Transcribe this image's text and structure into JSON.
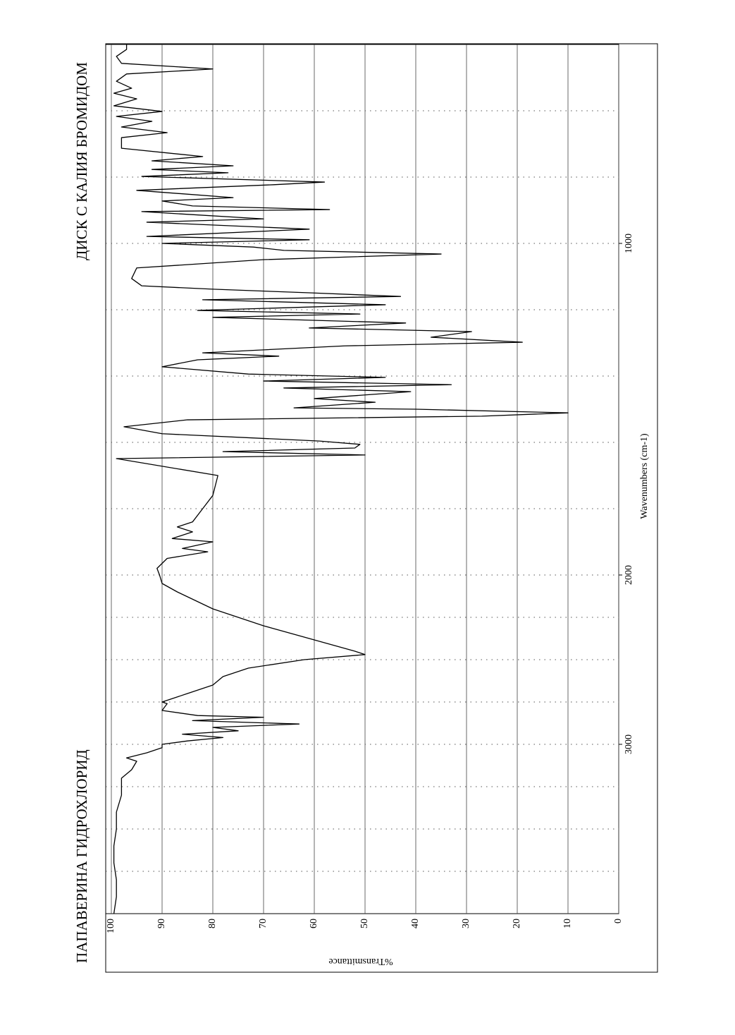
{
  "chart_data": {
    "type": "line",
    "title": "ПАПАВЕРИНА ГИДРОХЛОРИД",
    "subtitle": "ДИСК С КАЛИЯ БРОМИДОМ",
    "x_label": "Wavenumbers (cm-1)",
    "y_label": "%Transmittance",
    "color": "#000000",
    "xlim": [
      4000,
      400
    ],
    "x_scale_break": 2000,
    "xticks": [
      3000,
      2000,
      1000
    ],
    "x_gridlines": [
      3750,
      3500,
      3250,
      3000,
      2750,
      2500,
      2250,
      2000,
      1800,
      1600,
      1400,
      1200,
      1000,
      800,
      600
    ],
    "ylim": [
      0,
      100
    ],
    "yticks": [
      0,
      10,
      20,
      30,
      40,
      50,
      60,
      70,
      80,
      90,
      100
    ],
    "grid": true,
    "x": [
      4000,
      3900,
      3800,
      3700,
      3600,
      3500,
      3400,
      3300,
      3200,
      3150,
      3100,
      3080,
      3050,
      3020,
      3000,
      2980,
      2960,
      2940,
      2920,
      2900,
      2880,
      2860,
      2840,
      2830,
      2800,
      2760,
      2750,
      2700,
      2650,
      2600,
      2550,
      2500,
      2470,
      2450,
      2400,
      2300,
      2200,
      2100,
      2050,
      2000,
      1980,
      1950,
      1930,
      1920,
      1900,
      1890,
      1870,
      1855,
      1840,
      1800,
      1760,
      1700,
      1649,
      1638,
      1628,
      1617,
      1606,
      1596,
      1574,
      1553,
      1532,
      1521,
      1511,
      1500,
      1496,
      1479,
      1468,
      1447,
      1436,
      1426,
      1415,
      1404,
      1394,
      1372,
      1351,
      1340,
      1330,
      1309,
      1298,
      1283,
      1266,
      1255,
      1240,
      1223,
      1213,
      1202,
      1185,
      1170,
      1160,
      1149,
      1138,
      1128,
      1106,
      1074,
      1049,
      1032,
      1021,
      1011,
      1000,
      989,
      979,
      957,
      936,
      926,
      904,
      898,
      887,
      872,
      862,
      840,
      823,
      815,
      798,
      787,
      777,
      766,
      751,
      738,
      713,
      681,
      666,
      649,
      632,
      617,
      602,
      585,
      564,
      547,
      532,
      511,
      489,
      474,
      457,
      436,
      415,
      400
    ],
    "values": [
      99.5,
      99,
      99,
      99.5,
      99.5,
      99,
      99,
      98,
      98,
      96,
      95,
      97,
      93,
      90,
      90,
      85,
      78,
      86,
      75,
      80,
      63,
      84,
      70,
      83,
      90,
      89,
      90,
      85,
      80,
      78,
      73,
      62,
      50,
      52,
      58,
      70,
      80,
      87,
      90,
      90.5,
      91,
      89,
      81,
      86,
      80,
      88,
      84,
      87,
      84,
      82,
      80,
      79,
      99,
      50,
      78,
      52,
      51,
      59,
      90,
      97.5,
      85,
      27,
      10,
      40,
      64,
      48,
      60,
      41,
      66,
      33,
      70,
      46,
      73,
      90,
      83,
      67,
      82,
      54,
      19,
      37,
      29,
      61,
      42,
      80,
      51,
      83,
      46,
      82,
      43,
      61,
      80,
      94,
      96,
      95,
      70,
      35,
      66,
      72,
      90,
      61,
      93,
      61,
      93,
      70,
      94,
      57,
      84,
      90,
      76,
      95,
      68,
      58,
      94,
      77,
      92,
      76,
      92,
      82,
      98,
      98,
      89,
      98,
      92,
      99,
      90,
      99.5,
      95,
      99.5,
      96,
      99,
      97,
      80,
      98,
      99,
      97,
      97
    ]
  }
}
